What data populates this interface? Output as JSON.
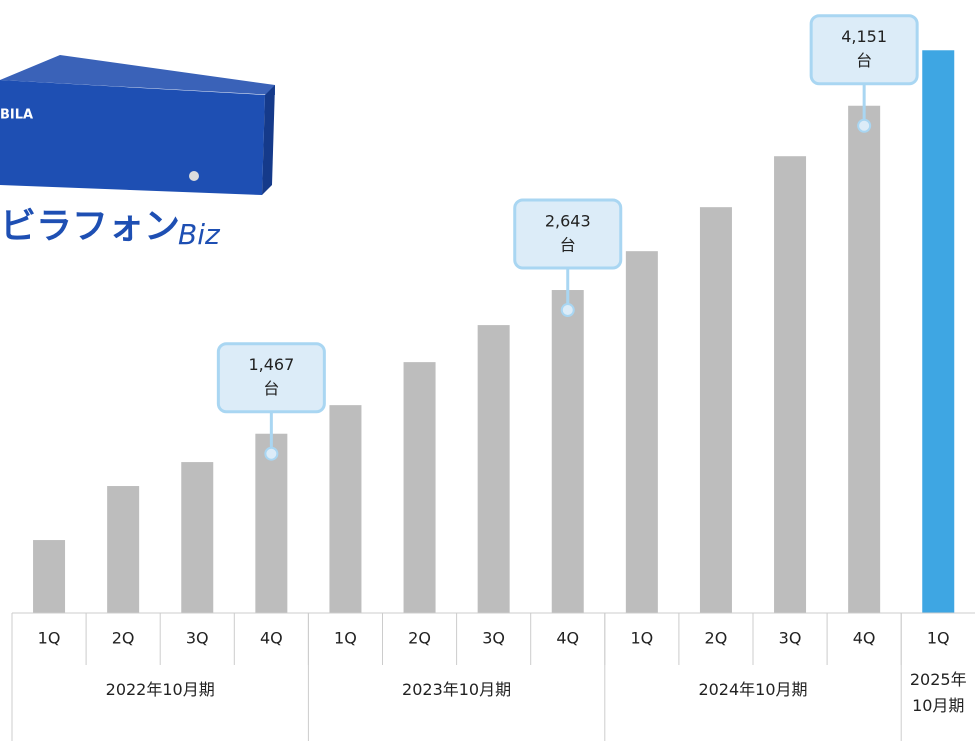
{
  "logo": {
    "device_label": "BILA",
    "product_name": "ビラフォン",
    "suffix": "Biz"
  },
  "chart_data": {
    "type": "bar",
    "categories": [
      "1Q",
      "2Q",
      "3Q",
      "4Q",
      "1Q",
      "2Q",
      "3Q",
      "4Q",
      "1Q",
      "2Q",
      "3Q",
      "4Q",
      "1Q"
    ],
    "groups": [
      {
        "label": "2022年10月期",
        "span": 4
      },
      {
        "label": "2023年10月期",
        "span": 4
      },
      {
        "label": "2024年10月期",
        "span": 4
      },
      {
        "label": "2025年10月期",
        "span": 1
      }
    ],
    "values": [
      597,
      1039,
      1235,
      1467,
      1701,
      2053,
      2356,
      2643,
      2961,
      3321,
      3738,
      4151,
      4605
    ],
    "value_labels": [
      null,
      null,
      null,
      "1,467",
      null,
      null,
      null,
      "2,643",
      null,
      null,
      null,
      "4,151",
      null
    ],
    "unit_label": "台",
    "colors": [
      "#bdbdbd",
      "#bdbdbd",
      "#bdbdbd",
      "#bdbdbd",
      "#bdbdbd",
      "#bdbdbd",
      "#bdbdbd",
      "#bdbdbd",
      "#bdbdbd",
      "#bdbdbd",
      "#bdbdbd",
      "#bdbdbd",
      "#3ea6e3"
    ],
    "ylim": [
      0,
      5000
    ]
  }
}
